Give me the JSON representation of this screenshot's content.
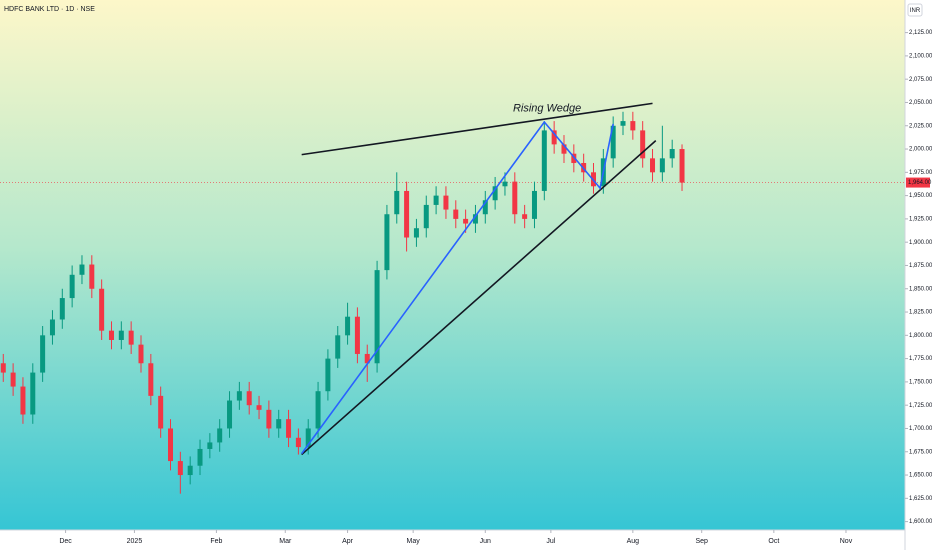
{
  "chart_data": {
    "type": "candlestick",
    "title": "HDFC BANK LTD · 1D · NSE",
    "currency": "INR",
    "annotation": "Rising Wedge",
    "x": [
      0,
      3,
      6,
      9,
      12,
      15,
      18,
      21,
      24,
      27,
      30,
      33,
      36,
      39,
      42,
      45,
      48,
      51,
      54,
      57,
      60,
      63,
      66,
      69,
      72,
      75,
      78,
      81,
      84,
      87,
      90,
      93,
      96,
      99,
      102,
      105,
      108,
      111,
      114,
      117,
      120,
      123,
      126,
      129,
      132,
      135,
      138,
      141,
      144,
      147,
      150,
      153,
      156,
      159,
      162,
      165,
      168,
      171,
      174,
      177,
      180,
      183,
      186,
      189,
      192,
      195,
      198,
      201,
      204,
      207
    ],
    "open": [
      1770,
      1760,
      1745,
      1715,
      1760,
      1800,
      1817,
      1840,
      1865,
      1876,
      1850,
      1805,
      1795,
      1805,
      1790,
      1770,
      1735,
      1700,
      1665,
      1650,
      1660,
      1678,
      1685,
      1700,
      1730,
      1740,
      1725,
      1720,
      1700,
      1710,
      1690,
      1680,
      1700,
      1740,
      1775,
      1800,
      1820,
      1780,
      1770,
      1870,
      1930,
      1955,
      1905,
      1915,
      1940,
      1950,
      1935,
      1925,
      1920,
      1930,
      1945,
      1960,
      1965,
      1930,
      1925,
      1955,
      2020,
      2005,
      1995,
      1985,
      1975,
      1960,
      1990,
      2025,
      2030,
      2020,
      1990,
      1975,
      1990,
      2000
    ],
    "high": [
      1780,
      1770,
      1755,
      1770,
      1810,
      1827,
      1850,
      1875,
      1886,
      1886,
      1860,
      1815,
      1815,
      1815,
      1800,
      1780,
      1745,
      1710,
      1675,
      1670,
      1688,
      1695,
      1710,
      1740,
      1750,
      1750,
      1735,
      1730,
      1720,
      1720,
      1700,
      1710,
      1750,
      1785,
      1810,
      1835,
      1830,
      1790,
      1880,
      1940,
      1975,
      1965,
      1925,
      1950,
      1960,
      1960,
      1945,
      1935,
      1940,
      1955,
      1970,
      1975,
      1975,
      1940,
      1965,
      2030,
      2030,
      2015,
      2005,
      1995,
      1985,
      2000,
      2035,
      2040,
      2040,
      2030,
      2000,
      2025,
      2010,
      2005
    ],
    "low": [
      1750,
      1735,
      1705,
      1705,
      1750,
      1790,
      1807,
      1830,
      1855,
      1840,
      1795,
      1785,
      1785,
      1780,
      1760,
      1725,
      1690,
      1655,
      1630,
      1640,
      1650,
      1668,
      1675,
      1690,
      1720,
      1715,
      1710,
      1690,
      1690,
      1680,
      1672,
      1672,
      1690,
      1730,
      1765,
      1790,
      1770,
      1750,
      1760,
      1860,
      1920,
      1890,
      1895,
      1905,
      1930,
      1925,
      1915,
      1910,
      1910,
      1920,
      1935,
      1950,
      1920,
      1915,
      1915,
      1945,
      1995,
      1985,
      1975,
      1965,
      1952,
      1952,
      1980,
      2015,
      2010,
      1980,
      1965,
      1965,
      1980,
      1955
    ],
    "close": [
      1760,
      1745,
      1715,
      1760,
      1800,
      1817,
      1840,
      1865,
      1876,
      1850,
      1805,
      1795,
      1805,
      1790,
      1770,
      1735,
      1700,
      1665,
      1650,
      1660,
      1678,
      1685,
      1700,
      1730,
      1740,
      1725,
      1720,
      1700,
      1710,
      1690,
      1680,
      1700,
      1740,
      1775,
      1800,
      1820,
      1780,
      1770,
      1870,
      1930,
      1955,
      1905,
      1915,
      1940,
      1950,
      1935,
      1925,
      1920,
      1930,
      1945,
      1960,
      1965,
      1930,
      1925,
      1955,
      2020,
      2005,
      1995,
      1985,
      1975,
      1960,
      1990,
      2025,
      2030,
      2020,
      1990,
      1975,
      1990,
      2000,
      1964
    ],
    "up_color": "#089981",
    "down_color": "#f23645",
    "last_price": {
      "value": 1964,
      "label": "1,964.00"
    },
    "lines": [
      {
        "color": "#131722",
        "points": [
          [
            91,
            1994
          ],
          [
            198,
            2049
          ]
        ]
      },
      {
        "color": "#131722",
        "points": [
          [
            91,
            1672
          ],
          [
            199,
            2009
          ]
        ]
      },
      {
        "color": "#2962ff",
        "points": [
          [
            91,
            1673
          ],
          [
            165,
            2029
          ],
          [
            182,
            1958
          ],
          [
            186,
            2027
          ]
        ]
      }
    ],
    "xlim": [
      -1,
      275
    ],
    "ylim": [
      1591,
      2160
    ],
    "xticks": [
      {
        "value": 19,
        "label": "Dec"
      },
      {
        "value": 40,
        "label": "2025"
      },
      {
        "value": 65,
        "label": "Feb"
      },
      {
        "value": 86,
        "label": "Mar"
      },
      {
        "value": 105,
        "label": "Apr"
      },
      {
        "value": 125,
        "label": "May"
      },
      {
        "value": 147,
        "label": "Jun"
      },
      {
        "value": 167,
        "label": "Jul"
      },
      {
        "value": 192,
        "label": "Aug"
      },
      {
        "value": 213,
        "label": "Sep"
      },
      {
        "value": 235,
        "label": "Oct"
      },
      {
        "value": 257,
        "label": "Nov"
      }
    ],
    "yticks": [
      {
        "value": 1600,
        "label": "1,600.00"
      },
      {
        "value": 1625,
        "label": "1,625.00"
      },
      {
        "value": 1650,
        "label": "1,650.00"
      },
      {
        "value": 1675,
        "label": "1,675.00"
      },
      {
        "value": 1700,
        "label": "1,700.00"
      },
      {
        "value": 1725,
        "label": "1,725.00"
      },
      {
        "value": 1750,
        "label": "1,750.00"
      },
      {
        "value": 1775,
        "label": "1,775.00"
      },
      {
        "value": 1800,
        "label": "1,800.00"
      },
      {
        "value": 1825,
        "label": "1,825.00"
      },
      {
        "value": 1850,
        "label": "1,850.00"
      },
      {
        "value": 1875,
        "label": "1,875.00"
      },
      {
        "value": 1900,
        "label": "1,900.00"
      },
      {
        "value": 1925,
        "label": "1,925.00"
      },
      {
        "value": 1950,
        "label": "1,950.00"
      },
      {
        "value": 1975,
        "label": "1,975.00"
      },
      {
        "value": 2000,
        "label": "2,000.00"
      },
      {
        "value": 2025,
        "label": "2,025.00"
      },
      {
        "value": 2050,
        "label": "2,050.00"
      },
      {
        "value": 2075,
        "label": "2,075.00"
      },
      {
        "value": 2100,
        "label": "2,100.00"
      },
      {
        "value": 2125,
        "label": "2,125.00"
      }
    ]
  }
}
